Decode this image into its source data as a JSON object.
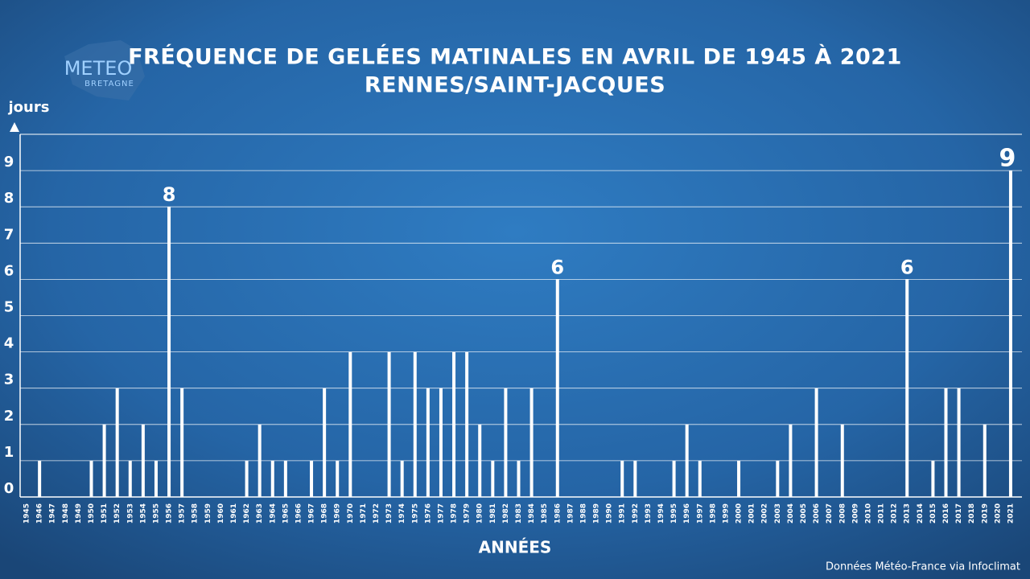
{
  "chart_data": {
    "type": "bar",
    "title": "FRÉQUENCE DE GELÉES MATINALES EN AVRIL DE 1945 À 2021",
    "subtitle": "RENNES/SAINT-JACQUES",
    "y_label": "jours",
    "x_label": "ANNÉES",
    "source": "Données Météo-France via Infoclimat",
    "logo": [
      "METEO",
      "BRETAGNE"
    ],
    "categories": [
      "1945",
      "1946",
      "1947",
      "1948",
      "1949",
      "1950",
      "1951",
      "1952",
      "1953",
      "1954",
      "1955",
      "1956",
      "1957",
      "1958",
      "1959",
      "1960",
      "1961",
      "1962",
      "1963",
      "1964",
      "1965",
      "1966",
      "1967",
      "1968",
      "1969",
      "1970",
      "1971",
      "1972",
      "1973",
      "1974",
      "1975",
      "1976",
      "1977",
      "1978",
      "1979",
      "1980",
      "1981",
      "1982",
      "1983",
      "1984",
      "1985",
      "1986",
      "1987",
      "1988",
      "1989",
      "1990",
      "1991",
      "1992",
      "1993",
      "1994",
      "1995",
      "1996",
      "1997",
      "1998",
      "1999",
      "2000",
      "2001",
      "2002",
      "2003",
      "2004",
      "2005",
      "2006",
      "2007",
      "2008",
      "2009",
      "2010",
      "2011",
      "2012",
      "2013",
      "2014",
      "2015",
      "2016",
      "2017",
      "2018",
      "2019",
      "2020",
      "2021"
    ],
    "values": [
      0,
      1,
      0,
      0,
      0,
      1,
      2,
      3,
      1,
      2,
      1,
      8,
      3,
      0,
      0,
      0,
      0,
      1,
      2,
      1,
      1,
      0,
      1,
      3,
      1,
      4,
      0,
      0,
      4,
      1,
      4,
      3,
      3,
      4,
      4,
      2,
      1,
      3,
      1,
      3,
      0,
      6,
      0,
      0,
      0,
      0,
      1,
      1,
      0,
      0,
      1,
      2,
      1,
      0,
      0,
      1,
      0,
      0,
      1,
      2,
      0,
      3,
      0,
      2,
      0,
      0,
      0,
      0,
      6,
      0,
      1,
      3,
      3,
      0,
      2,
      0,
      9
    ],
    "value_labels": [
      null,
      null,
      null,
      null,
      null,
      null,
      null,
      null,
      null,
      null,
      null,
      "8",
      null,
      null,
      null,
      null,
      null,
      null,
      null,
      null,
      null,
      null,
      null,
      null,
      null,
      null,
      null,
      null,
      null,
      null,
      null,
      null,
      null,
      null,
      null,
      null,
      null,
      null,
      null,
      null,
      null,
      "6",
      null,
      null,
      null,
      null,
      null,
      null,
      null,
      null,
      null,
      null,
      null,
      null,
      null,
      null,
      null,
      null,
      null,
      null,
      null,
      null,
      null,
      null,
      null,
      null,
      null,
      null,
      "6",
      null,
      null,
      null,
      null,
      null,
      null,
      null,
      "9"
    ],
    "color": "#ffffff",
    "ylim": [
      0,
      10
    ],
    "yticks": [
      0,
      1,
      2,
      3,
      4,
      5,
      6,
      7,
      8,
      9
    ],
    "grid": true
  }
}
